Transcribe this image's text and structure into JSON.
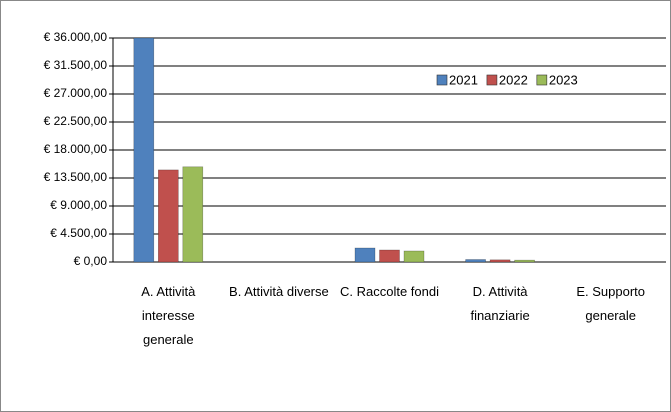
{
  "chart_data": {
    "type": "bar",
    "categories": [
      "A. Attività interesse generale",
      "B. Attività diverse",
      "C. Raccolte fondi",
      "D. Attività finanziarie",
      "E. Supporto generale"
    ],
    "series": [
      {
        "name": "2021",
        "color": "#4f81bd",
        "values": [
          36000,
          0,
          2250,
          400,
          0
        ]
      },
      {
        "name": "2022",
        "color": "#c0504d",
        "values": [
          14800,
          0,
          1930,
          350,
          0
        ]
      },
      {
        "name": "2023",
        "color": "#9bbb59",
        "values": [
          15300,
          0,
          1770,
          300,
          0
        ]
      }
    ],
    "ylim": [
      0,
      36000
    ],
    "yticks": [
      {
        "value": 0,
        "label": "€ 0,00"
      },
      {
        "value": 4500,
        "label": "€ 4.500,00"
      },
      {
        "value": 9000,
        "label": "€ 9.000,00"
      },
      {
        "value": 13500,
        "label": "€ 13.500,00"
      },
      {
        "value": 18000,
        "label": "€ 18.000,00"
      },
      {
        "value": 22500,
        "label": "€ 22.500,00"
      },
      {
        "value": 27000,
        "label": "€ 27.000,00"
      },
      {
        "value": 31500,
        "label": "€ 31.500,00"
      },
      {
        "value": 36000,
        "label": "€ 36.000,00"
      }
    ],
    "grid": true,
    "legend": "upper-right"
  }
}
